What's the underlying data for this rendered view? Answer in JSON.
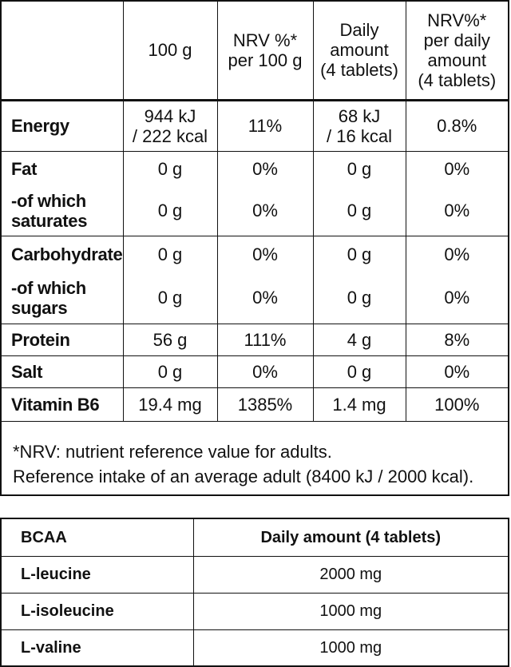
{
  "nutrition": {
    "headers": [
      "",
      "100 g",
      "NRV %*\nper 100 g",
      "Daily\namount\n(4 tablets)",
      "NRV%*\nper daily\namount\n(4 tablets)"
    ],
    "rows": [
      {
        "label": "Energy",
        "c1": "944 kJ\n/ 222 kcal",
        "c2": "11%",
        "c3": "68 kJ\n/ 16 kcal",
        "c4": "0.8%"
      },
      {
        "label": "Fat",
        "c1": "0 g",
        "c2": "0%",
        "c3": "0 g",
        "c4": "0%"
      },
      {
        "label": "-of which\nsaturates",
        "c1": "0 g",
        "c2": "0%",
        "c3": "0 g",
        "c4": "0%"
      },
      {
        "label": "Carbohydrate",
        "c1": "0 g",
        "c2": "0%",
        "c3": "0 g",
        "c4": "0%"
      },
      {
        "label": "-of which\nsugars",
        "c1": "0 g",
        "c2": "0%",
        "c3": "0 g",
        "c4": "0%"
      },
      {
        "label": "Protein",
        "c1": "56 g",
        "c2": "111%",
        "c3": "4 g",
        "c4": "8%"
      },
      {
        "label": "Salt",
        "c1": "0 g",
        "c2": "0%",
        "c3": "0 g",
        "c4": "0%"
      },
      {
        "label": "Vitamin B6",
        "c1": "19.4 mg",
        "c2": "1385%",
        "c3": "1.4 mg",
        "c4": "100%"
      }
    ],
    "footnote_line1": "*NRV: nutrient reference value for adults.",
    "footnote_line2": "Reference intake of an average adult (8400 kJ / 2000 kcal)."
  },
  "bcaa": {
    "header_label": "BCAA",
    "header_value": "Daily amount (4 tablets)",
    "rows": [
      {
        "label": "L-leucine",
        "value": "2000 mg"
      },
      {
        "label": "L-isoleucine",
        "value": "1000 mg"
      },
      {
        "label": "L-valine",
        "value": "1000 mg"
      }
    ]
  }
}
